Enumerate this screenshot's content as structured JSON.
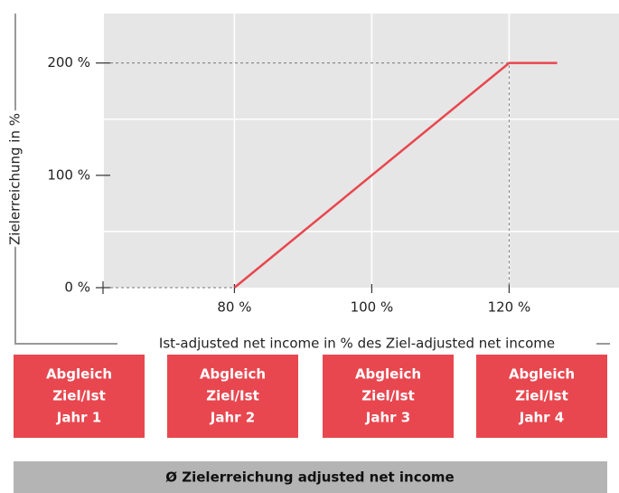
{
  "chart_data": {
    "type": "line",
    "x_label": "Ist-adjusted net income in % des Ziel-adjusted net income",
    "y_label": "Zielerreichung in %",
    "x": [
      80,
      120,
      127
    ],
    "series": [
      {
        "name": null,
        "color": "#e8474f",
        "values": [
          0,
          200,
          200
        ]
      }
    ],
    "xlim": [
      61,
      136
    ],
    "ylim": [
      0,
      244
    ],
    "xticks": [
      {
        "value": 80,
        "label": "80 %"
      },
      {
        "value": 100,
        "label": "100 %"
      },
      {
        "value": 120,
        "label": "120 %"
      }
    ],
    "yticks": [
      {
        "value": 0,
        "label": "0 %"
      },
      {
        "value": 100,
        "label": "100 %"
      },
      {
        "value": 200,
        "label": "200 %"
      }
    ],
    "grid": true
  },
  "boxes": [
    {
      "lines": [
        "Abgleich",
        "Ziel/Ist",
        "Jahr 1"
      ]
    },
    {
      "lines": [
        "Abgleich",
        "Ziel/Ist",
        "Jahr 2"
      ]
    },
    {
      "lines": [
        "Abgleich",
        "Ziel/Ist",
        "Jahr 3"
      ]
    },
    {
      "lines": [
        "Abgleich",
        "Ziel/Ist",
        "Jahr 4"
      ]
    }
  ],
  "footer": "Ø Zielerreichung adjusted net income"
}
